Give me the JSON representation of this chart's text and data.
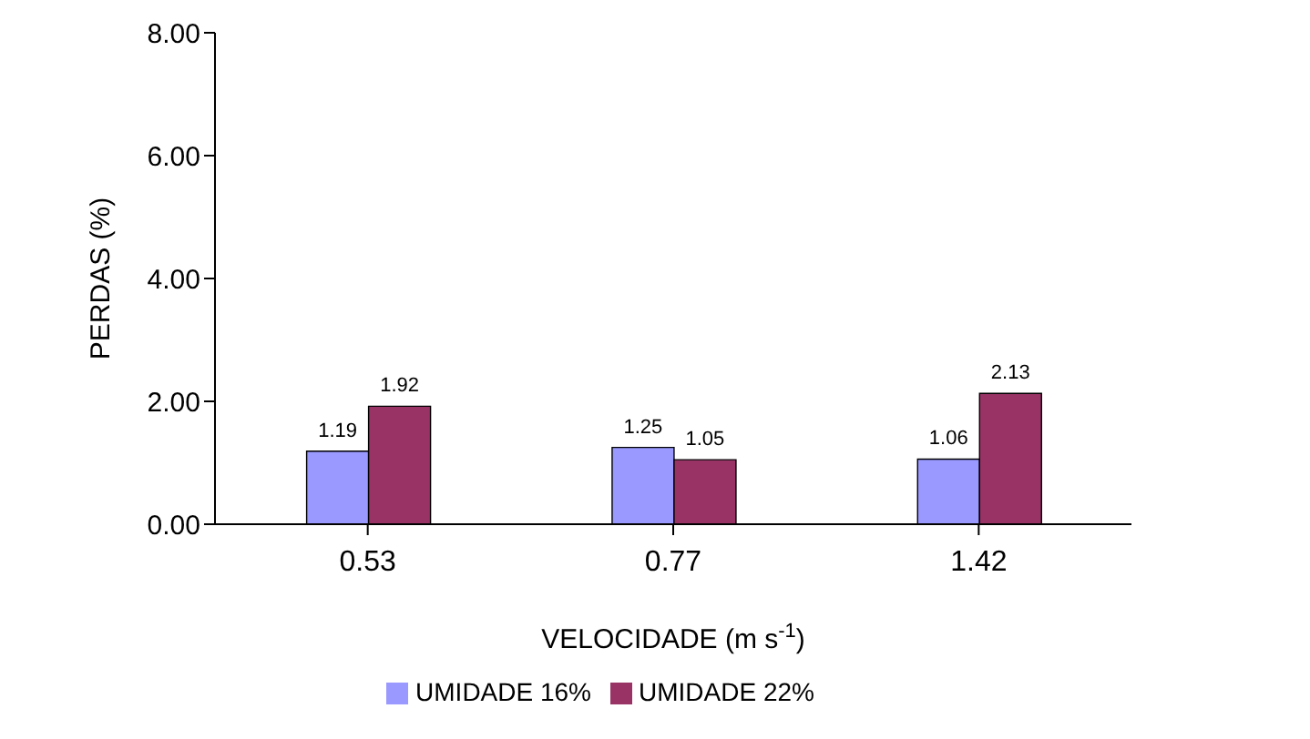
{
  "chart_data": {
    "type": "bar",
    "xlabel": "VELOCIDADE (m s$^{-1}$)",
    "ylabel": "PERDAS (%)",
    "categories": [
      "0.53",
      "0.77",
      "1.42"
    ],
    "series": [
      {
        "name": "UMIDADE 16%",
        "color": "#9999ff",
        "values": [
          1.19,
          1.25,
          1.06
        ]
      },
      {
        "name": "UMIDADE 22%",
        "color": "#993366",
        "values": [
          1.92,
          1.05,
          2.13
        ]
      }
    ],
    "ylim": [
      0,
      8
    ],
    "yticks": [
      {
        "value": 0,
        "label": "0.00"
      },
      {
        "value": 2,
        "label": "2.00"
      },
      {
        "value": 4,
        "label": "4.00"
      },
      {
        "value": 6,
        "label": "6.00"
      },
      {
        "value": 8,
        "label": "8.00"
      }
    ],
    "data_labels": true,
    "grid": false,
    "legend": "bottom"
  }
}
